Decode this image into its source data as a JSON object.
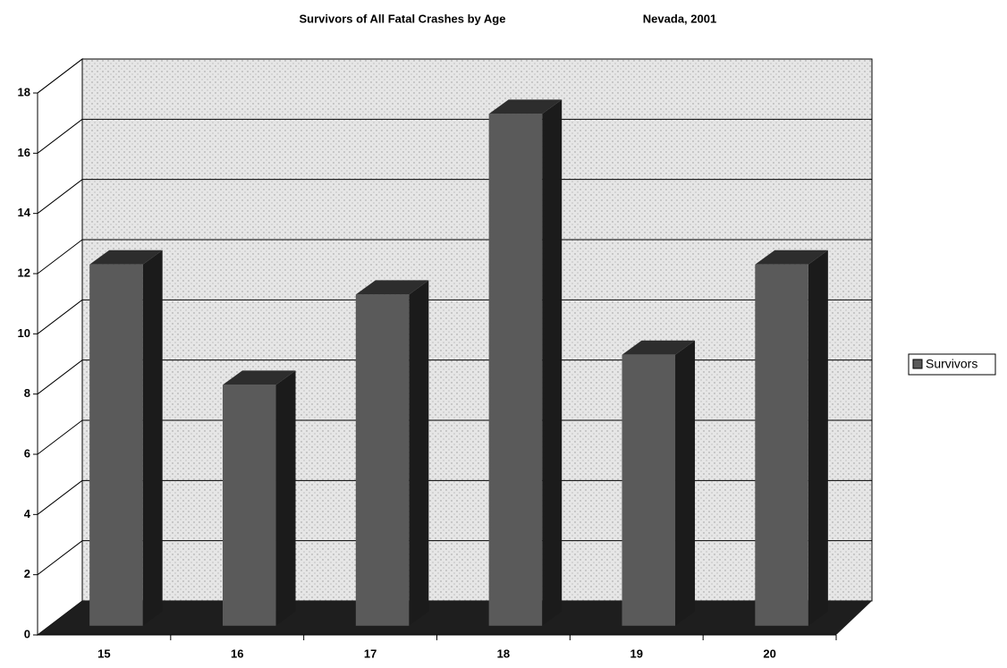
{
  "chart_data": {
    "type": "bar3d",
    "title": "Survivors of All Fatal Crashes by Age",
    "subtitle": "Nevada, 2001",
    "categories": [
      "15",
      "16",
      "17",
      "18",
      "19",
      "20"
    ],
    "series": [
      {
        "name": "Survivors",
        "color": "#5a5a5a",
        "values": [
          12,
          8,
          11,
          17,
          9,
          12
        ]
      }
    ],
    "ylim": [
      0,
      18
    ],
    "yticks": [
      0,
      2,
      4,
      6,
      8,
      10,
      12,
      14,
      16,
      18
    ],
    "grid": true,
    "legend": "right"
  }
}
